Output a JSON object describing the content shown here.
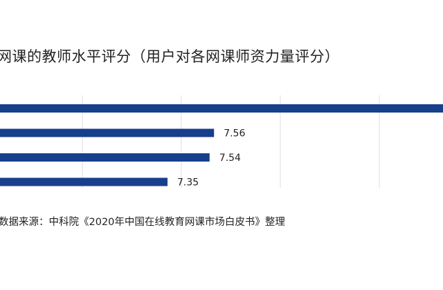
{
  "chart_data": {
    "type": "bar",
    "orientation": "horizontal",
    "title": "网课的教师水平评分（用户对各网课师资力量评分）",
    "categories": [
      "",
      "",
      "",
      ""
    ],
    "values": [
      8.6,
      7.56,
      7.54,
      7.35
    ],
    "data_labels": [
      "",
      "7.56",
      "7.54",
      "7.35"
    ],
    "xlim": [
      6.5,
      8.6
    ],
    "grid": true,
    "bar_color": "#183f8c",
    "grid_color": "#dcdcdc"
  },
  "source": "数据来源：中科院《2020年中国在线教育网课市场白皮书》整理"
}
